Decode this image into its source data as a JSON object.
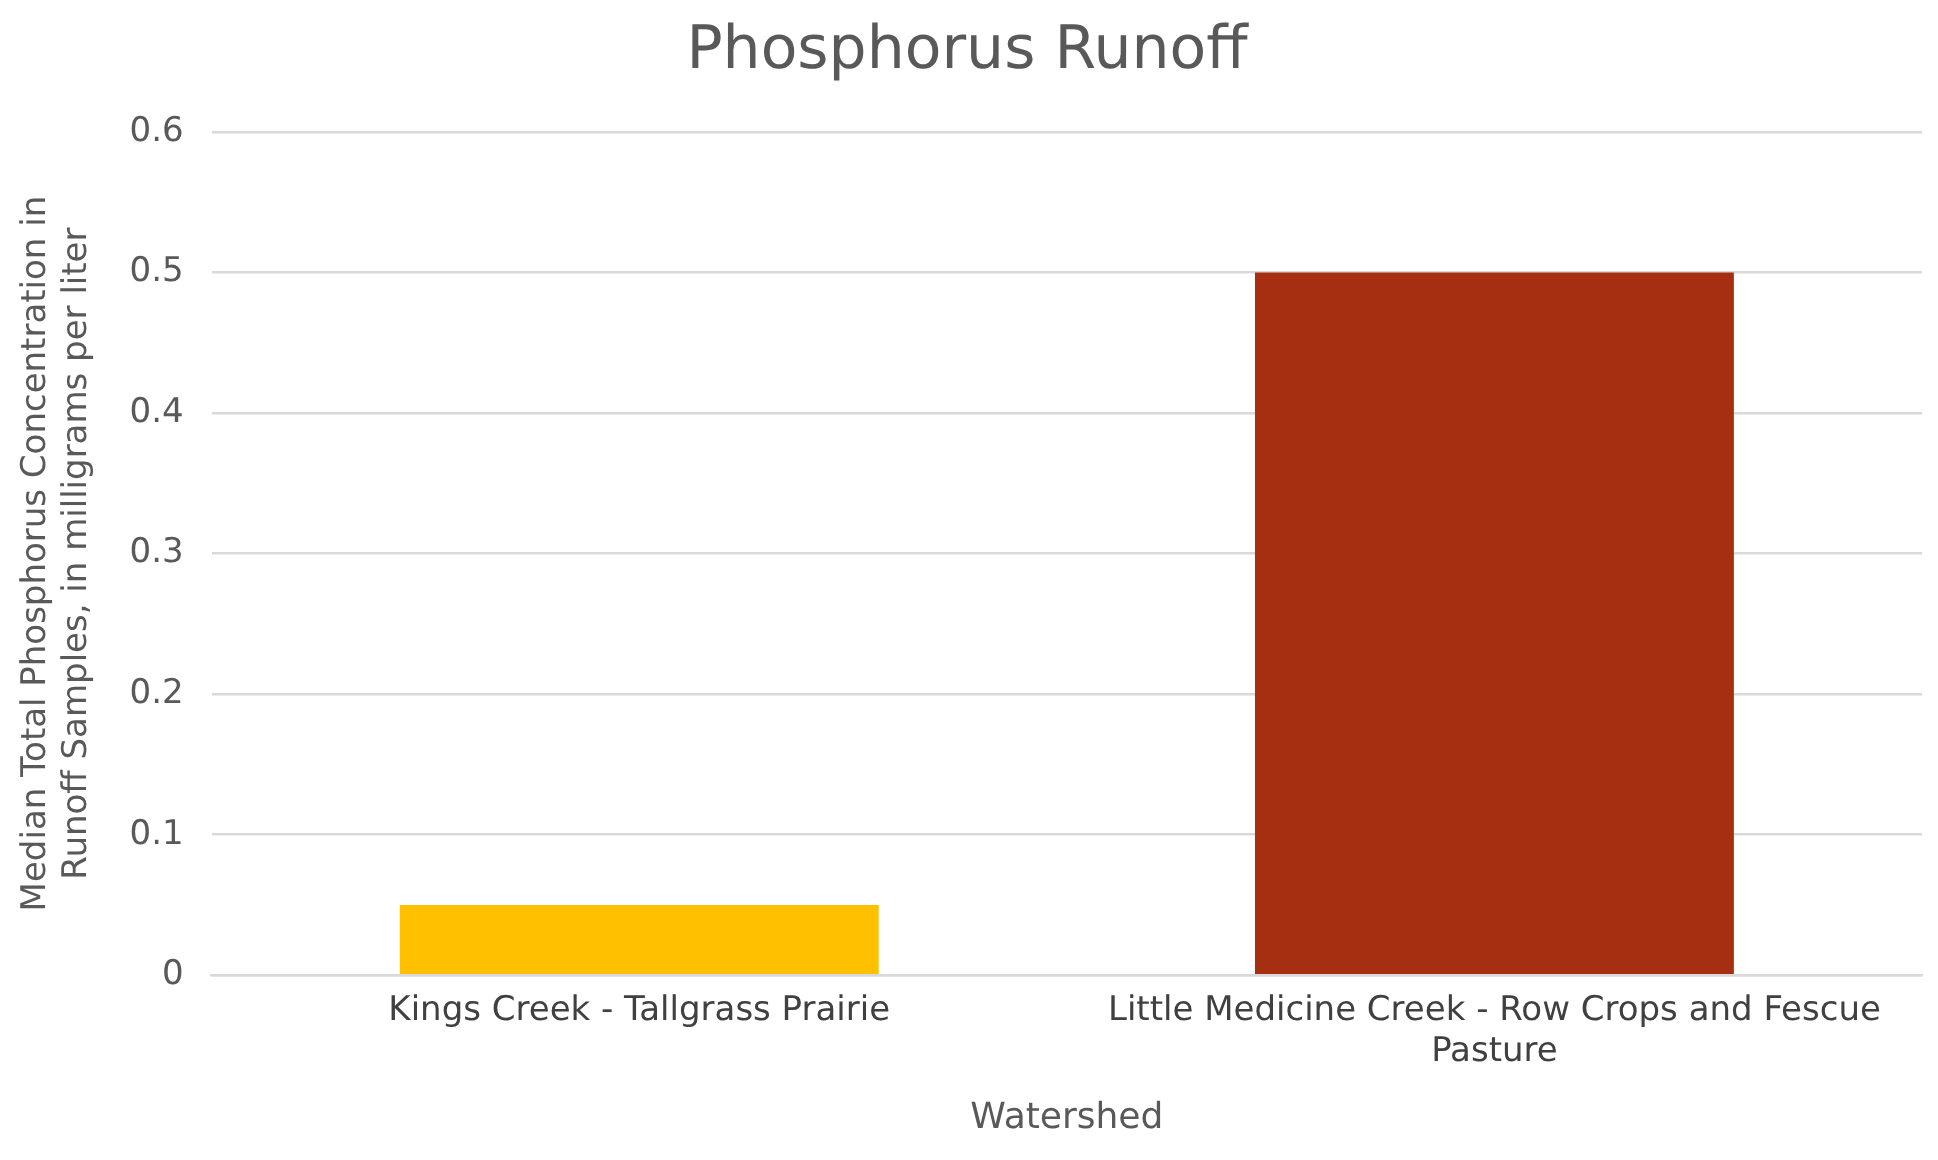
{
  "chart_data": {
    "type": "bar",
    "title": "Phosphorus Runoff",
    "xlabel": "Watershed",
    "ylabel": "Median Total Phosphorus Concentration in Runoff Samples, in milligrams per liter",
    "categories": [
      "Kings Creek - Tallgrass Prairie",
      "Little Medicine Creek - Row Crops and Fescue Pasture"
    ],
    "values": [
      0.05,
      0.5
    ],
    "colors": [
      "#ffc000",
      "#a52f10"
    ],
    "ylim": [
      0,
      0.6
    ],
    "yticks": [
      0,
      0.1,
      0.2,
      0.3,
      0.4,
      0.5,
      0.6
    ],
    "grid": "y",
    "legend": false
  }
}
